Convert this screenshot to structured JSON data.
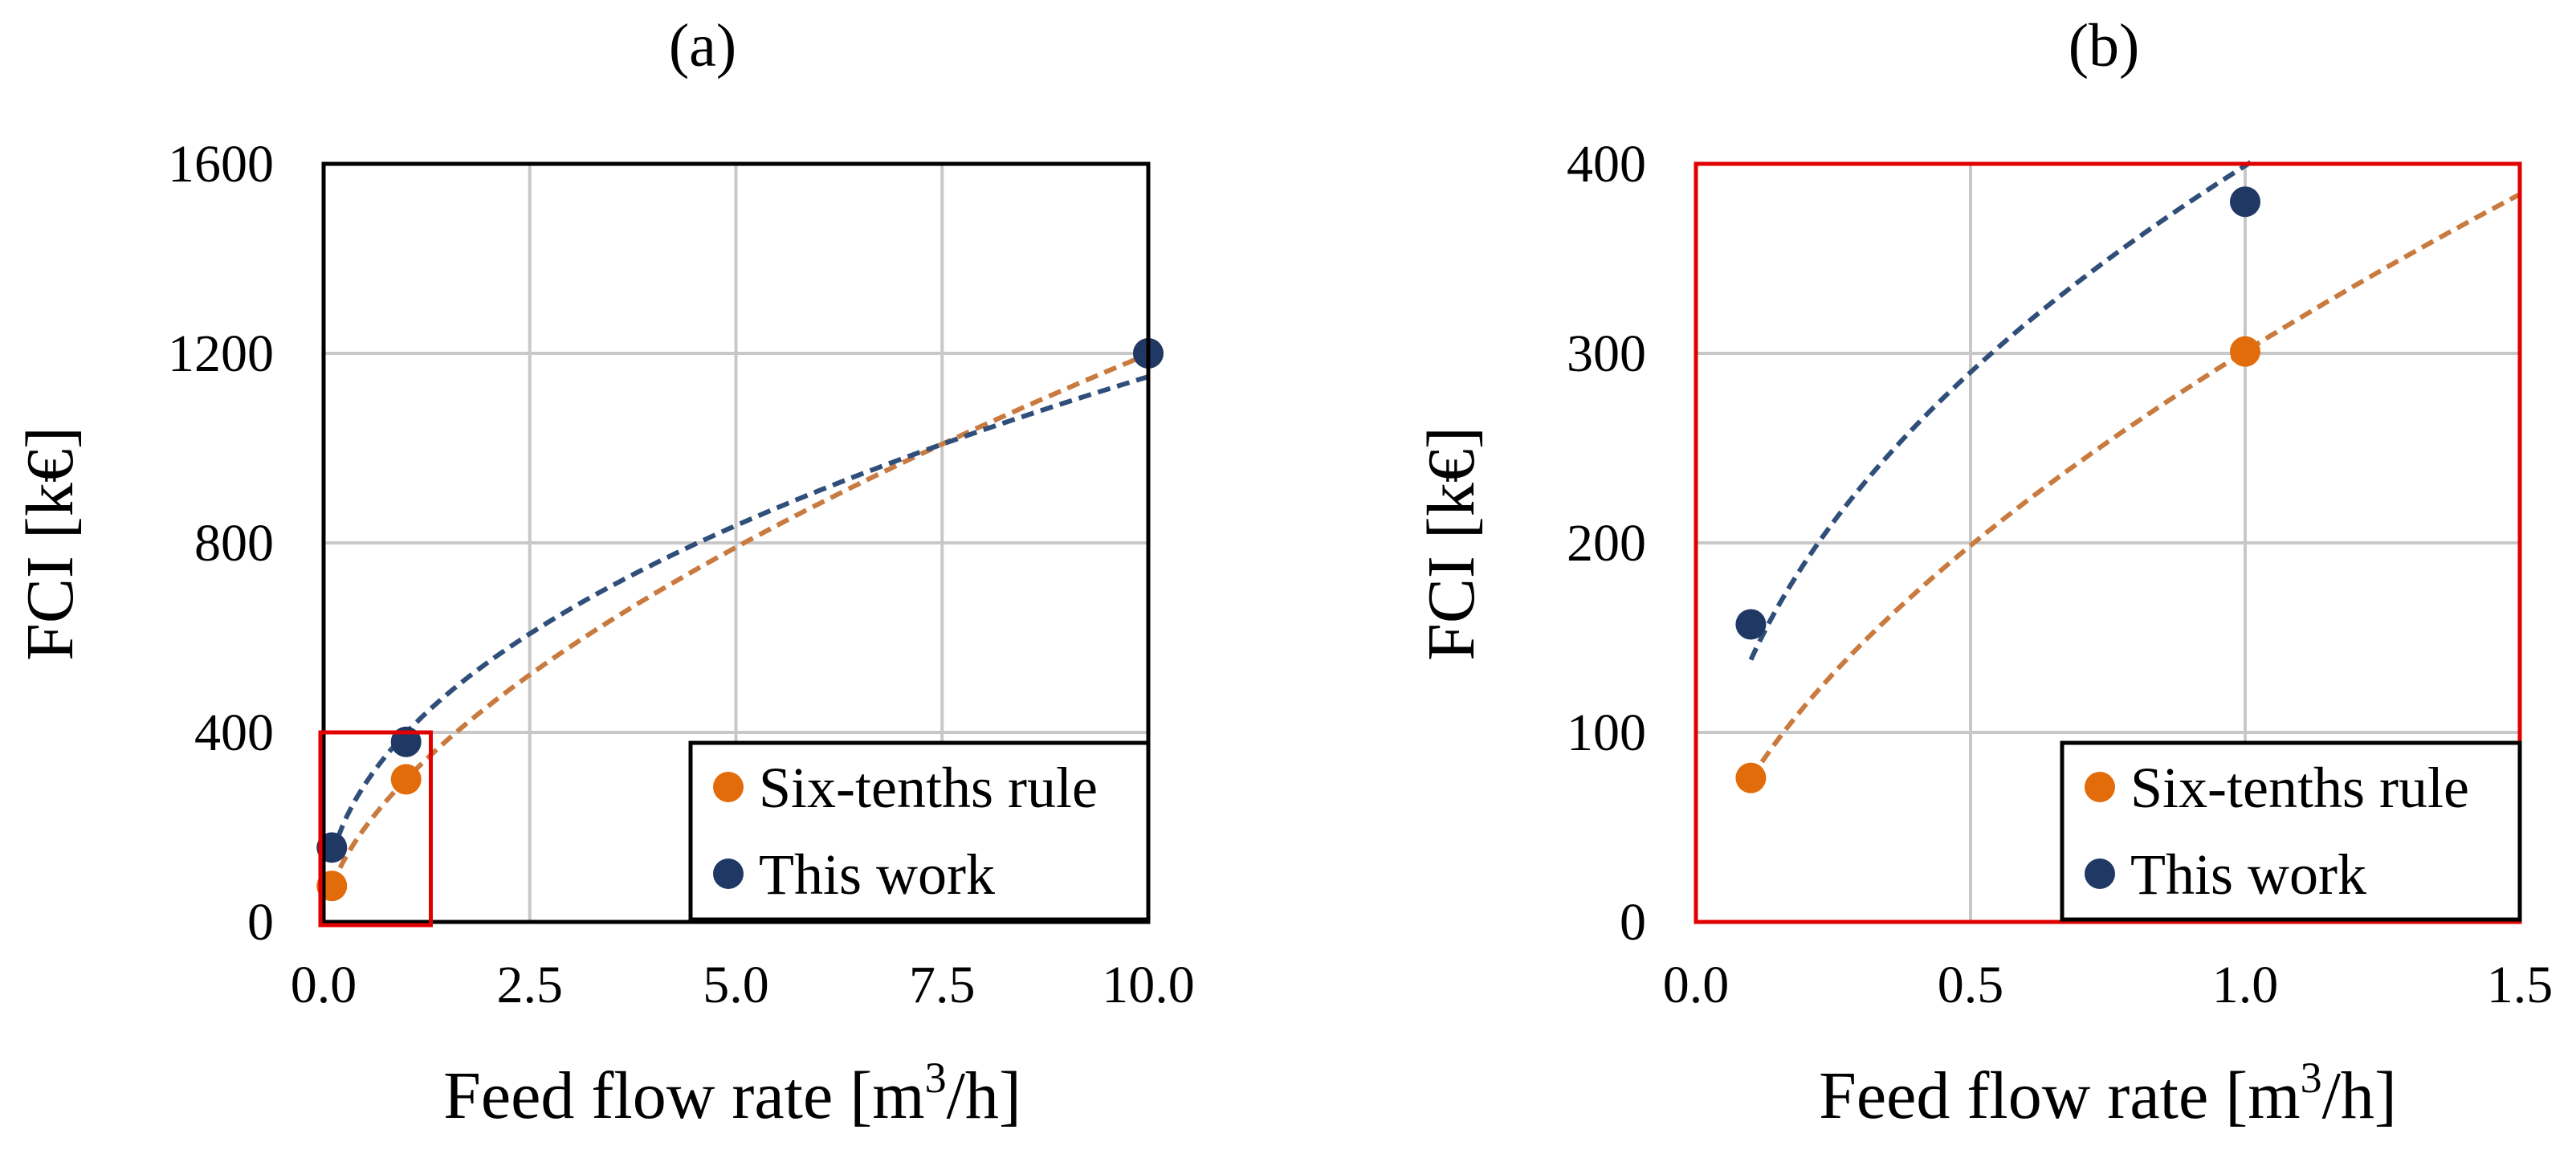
{
  "chart_data": [
    {
      "type": "scatter",
      "panel_label": "(a)",
      "xlabel_prefix": "Feed flow rate [m",
      "xlabel_sup": "3",
      "xlabel_suffix": "/h]",
      "ylabel": "FCI [k€]",
      "xlim": [
        0,
        10
      ],
      "ylim": [
        0,
        1600
      ],
      "x_ticks": [
        0,
        2.5,
        5,
        7.5,
        10
      ],
      "x_tick_labels": [
        "0.0",
        "2.5",
        "5.0",
        "7.5",
        "10.0"
      ],
      "y_ticks": [
        0,
        400,
        800,
        1200,
        1600
      ],
      "y_tick_labels": [
        "0",
        "400",
        "800",
        "1200",
        "1600"
      ],
      "grid": true,
      "frame_color": "#000000",
      "zoom_box": {
        "x": [
          0,
          1.3
        ],
        "y": [
          0,
          400
        ],
        "color": "#e00000"
      },
      "legend_position": "bottom-right",
      "series": [
        {
          "name": "Six-tenths rule",
          "color": "#e36c0a",
          "trend_color": "#c97a3e",
          "x": [
            0.1,
            1.0,
            10.0
          ],
          "y": [
            76,
            301,
            1200
          ],
          "trend": {
            "a": 301,
            "b": 0.6,
            "x_range": [
              0.1,
              10
            ]
          }
        },
        {
          "name": "This work",
          "color": "#1f3864",
          "trend_color": "#2f4f7a",
          "x": [
            0.1,
            1.0,
            10.0
          ],
          "y": [
            157,
            380,
            1200
          ],
          "trend": {
            "a": 399,
            "b": 0.46,
            "x_range": [
              0.1,
              10
            ]
          }
        }
      ]
    },
    {
      "type": "scatter",
      "panel_label": "(b)",
      "xlabel_prefix": "Feed flow rate [m",
      "xlabel_sup": "3",
      "xlabel_suffix": "/h]",
      "ylabel": "FCI [k€]",
      "xlim": [
        0,
        1.5
      ],
      "ylim": [
        0,
        400
      ],
      "x_ticks": [
        0,
        0.5,
        1.0,
        1.5
      ],
      "x_tick_labels": [
        "0.0",
        "0.5",
        "1.0",
        "1.5"
      ],
      "y_ticks": [
        0,
        100,
        200,
        300,
        400
      ],
      "y_tick_labels": [
        "0",
        "100",
        "200",
        "300",
        "400"
      ],
      "grid": true,
      "frame_color": "#e00000",
      "legend_position": "bottom-right",
      "series": [
        {
          "name": "Six-tenths rule",
          "color": "#e36c0a",
          "trend_color": "#c97a3e",
          "x": [
            0.1,
            1.0
          ],
          "y": [
            76,
            301
          ],
          "trend": {
            "a": 301,
            "b": 0.6,
            "x_range": [
              0.1,
              1.5
            ]
          }
        },
        {
          "name": "This work",
          "color": "#1f3864",
          "trend_color": "#2f4f7a",
          "x": [
            0.1,
            1.0
          ],
          "y": [
            157,
            380
          ],
          "trend": {
            "a": 399,
            "b": 0.46,
            "x_range": [
              0.1,
              1.5
            ]
          }
        }
      ]
    }
  ]
}
